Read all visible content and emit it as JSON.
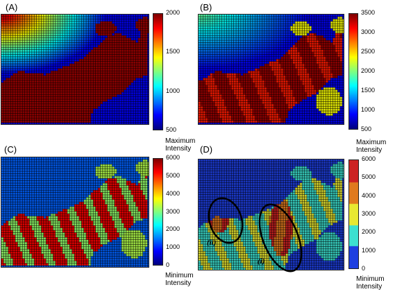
{
  "chart_data": [
    {
      "type": "heatmap",
      "panel": "(A)",
      "colorbar": {
        "ticks": [
          "2000",
          "1500",
          "1000",
          "500"
        ],
        "range": [
          500,
          2000
        ]
      },
      "colors": {
        "hot": "#7a0000",
        "cool": "#1e3fe0"
      }
    },
    {
      "type": "heatmap",
      "panel": "(B)",
      "colorbar": {
        "ticks": [
          "3500",
          "3000",
          "2500",
          "2000",
          "1500",
          "1000",
          "500"
        ],
        "range": [
          500,
          3500
        ]
      }
    },
    {
      "type": "heatmap",
      "panel": "(C)",
      "colorbar": {
        "ticks": [
          "6000",
          "5000",
          "4000",
          "3000",
          "2000",
          "1000",
          "0"
        ],
        "range": [
          0,
          6000
        ],
        "top_caption": "Maximum\nIntensity",
        "bottom_caption": "Minimum\nIntensity"
      }
    },
    {
      "type": "heatmap",
      "panel": "(D)",
      "colorbar": {
        "ticks": [
          "6000",
          "5000",
          "4000",
          "3000",
          "2000",
          "1000",
          "0"
        ],
        "range": [
          0,
          6000
        ],
        "discrete": true,
        "bands": [
          "#1e3fe0",
          "#3ce0d0",
          "#e8e832",
          "#e07a1e",
          "#cc2222"
        ],
        "top_caption": "Maximum\nIntensity",
        "bottom_caption": "Minimum\nIntensity"
      },
      "annotations": [
        "(i)",
        "(ii)"
      ]
    }
  ]
}
